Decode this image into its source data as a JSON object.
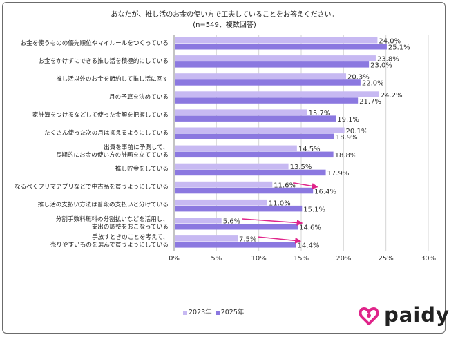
{
  "chart_data": {
    "type": "bar",
    "title": "あなたが、推し活のお金の使い方で工夫していることをお答えください。",
    "subtitle": "(n=549、複数回答)",
    "categories": [
      "お金を使うものの優先順位やマイルールをつくっている",
      "お金をかけずにできる推し活を積極的にしている",
      "推し活以外のお金を節約して推し活に回す",
      "月の予算を決めている",
      "家計簿をつけるなどして使った金額を把握している",
      "たくさん使った次の月は抑えるようにしている",
      "出費を事前に予測して、\n長期的にお金の使い方の計画を立てている",
      "推し貯金をしている",
      "なるべくフリマアプリなどで中古品を買うようにしている",
      "推し活の支払い方法は普段の支払いと分けている",
      "分割手数料無料の分割払いなどを活用し、\n支出の調整をおこなっている",
      "手放すときのことを考えて、\n売りやすいものを選んで買うようにしている"
    ],
    "series": [
      {
        "name": "2023年",
        "color": "#c7b9f2",
        "values": [
          24.0,
          23.8,
          20.3,
          24.2,
          15.7,
          20.1,
          14.5,
          13.5,
          11.6,
          11.0,
          5.6,
          7.5
        ]
      },
      {
        "name": "2025年",
        "color": "#8b78e0",
        "values": [
          25.1,
          23.0,
          22.0,
          21.7,
          19.1,
          18.9,
          18.8,
          17.9,
          16.4,
          15.1,
          14.6,
          14.4
        ]
      }
    ],
    "xlim": [
      0,
      30
    ],
    "ticks": [
      0,
      5,
      10,
      15,
      20,
      25,
      30
    ],
    "tick_labels": [
      "0%",
      "5%",
      "10%",
      "15%",
      "20%",
      "25%",
      "30%"
    ],
    "highlight_arrows_rows": [
      8,
      10,
      11
    ],
    "arrow_color": "#e0248a",
    "grid": true,
    "legend_position": "bottom"
  },
  "logo": {
    "text": "paidy",
    "color": "#e0248a"
  }
}
